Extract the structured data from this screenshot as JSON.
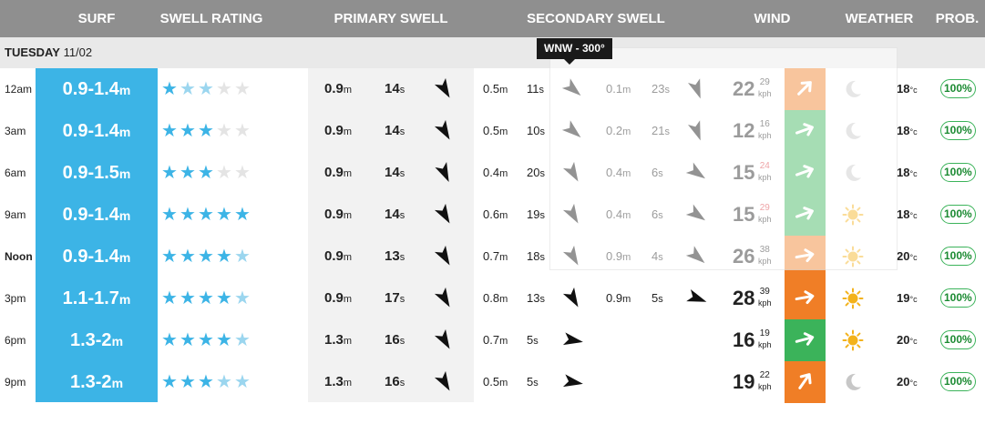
{
  "header": {
    "surf": "SURF",
    "swell_rating": "SWELL RATING",
    "primary_swell": "PRIMARY SWELL",
    "secondary_swell": "SECONDARY SWELL",
    "wind": "WIND",
    "weather": "WEATHER",
    "prob": "PROB."
  },
  "day": {
    "name": "TUESDAY",
    "date": "11/02"
  },
  "tooltip": "WNW - 300°",
  "colors": {
    "surf": "#3cb4e6",
    "wind_orange": "#f07e26",
    "wind_green": "#3bb35a",
    "gust_red": "#d9343a"
  },
  "rows": [
    {
      "time": "12am",
      "surf": "0.9-1.4",
      "stars_full": 1,
      "stars_faint": 2,
      "stars_total": 5,
      "p_ht": "0.9",
      "p_pd": "14",
      "p_dir": 150,
      "s_ht": "0.5",
      "s_pd": "11",
      "s_dir": 130,
      "t_ht": "0.1",
      "t_pd": "23",
      "t_dir": 160,
      "wind": "22",
      "gust": "29",
      "gust_red": false,
      "wind_color": "orange",
      "wind_dir": 225,
      "weather": "moon-icon",
      "temp": "18",
      "prob": "100%"
    },
    {
      "time": "3am",
      "surf": "0.9-1.4",
      "stars_full": 3,
      "stars_faint": 0,
      "stars_total": 5,
      "p_ht": "0.9",
      "p_pd": "14",
      "p_dir": 150,
      "s_ht": "0.5",
      "s_pd": "10",
      "s_dir": 130,
      "t_ht": "0.2",
      "t_pd": "21",
      "t_dir": 160,
      "wind": "12",
      "gust": "16",
      "gust_red": false,
      "wind_color": "green",
      "wind_dir": 250,
      "weather": "moon-icon",
      "temp": "18",
      "prob": "100%"
    },
    {
      "time": "6am",
      "surf": "0.9-1.5",
      "stars_full": 3,
      "stars_faint": 0,
      "stars_total": 5,
      "p_ht": "0.9",
      "p_pd": "14",
      "p_dir": 155,
      "s_ht": "0.4",
      "s_pd": "20",
      "s_dir": 150,
      "t_ht": "0.4",
      "t_pd": "6",
      "t_dir": 125,
      "wind": "15",
      "gust": "24",
      "gust_red": true,
      "wind_color": "green",
      "wind_dir": 250,
      "weather": "moon-icon",
      "temp": "18",
      "prob": "100%"
    },
    {
      "time": "9am",
      "surf": "0.9-1.4",
      "stars_full": 5,
      "stars_faint": 0,
      "stars_total": 5,
      "p_ht": "0.9",
      "p_pd": "14",
      "p_dir": 150,
      "s_ht": "0.6",
      "s_pd": "19",
      "s_dir": 150,
      "t_ht": "0.4",
      "t_pd": "6",
      "t_dir": 125,
      "wind": "15",
      "gust": "29",
      "gust_red": true,
      "wind_color": "green",
      "wind_dir": 250,
      "weather": "sun-icon",
      "temp": "18",
      "prob": "100%"
    },
    {
      "time": "Noon",
      "surf": "0.9-1.4",
      "stars_full": 4,
      "stars_faint": 1,
      "stars_total": 5,
      "p_ht": "0.9",
      "p_pd": "13",
      "p_dir": 150,
      "s_ht": "0.7",
      "s_pd": "18",
      "s_dir": 150,
      "t_ht": "0.9",
      "t_pd": "4",
      "t_dir": 130,
      "wind": "26",
      "gust": "38",
      "gust_red": false,
      "wind_color": "orange",
      "wind_dir": 260,
      "weather": "sun-icon",
      "temp": "20",
      "prob": "100%"
    },
    {
      "time": "3pm",
      "surf": "1.1-1.7",
      "stars_full": 4,
      "stars_faint": 1,
      "stars_total": 5,
      "p_ht": "0.9",
      "p_pd": "17",
      "p_dir": 150,
      "s_ht": "0.8",
      "s_pd": "13",
      "s_dir": 150,
      "t_ht": "0.9",
      "t_pd": "5",
      "t_dir": 110,
      "wind": "28",
      "gust": "39",
      "gust_red": false,
      "wind_color": "orange",
      "wind_dir": 260,
      "weather": "sun-icon",
      "temp": "19",
      "prob": "100%"
    },
    {
      "time": "6pm",
      "surf": "1.3-2",
      "stars_full": 4,
      "stars_faint": 1,
      "stars_total": 5,
      "p_ht": "1.3",
      "p_pd": "16",
      "p_dir": 150,
      "s_ht": "0.7",
      "s_pd": "5",
      "s_dir": 100,
      "t_ht": "",
      "t_pd": "",
      "t_dir": null,
      "wind": "16",
      "gust": "19",
      "gust_red": false,
      "wind_color": "green",
      "wind_dir": 255,
      "weather": "sun-icon",
      "temp": "20",
      "prob": "100%"
    },
    {
      "time": "9pm",
      "surf": "1.3-2",
      "stars_full": 3,
      "stars_faint": 2,
      "stars_total": 5,
      "p_ht": "1.3",
      "p_pd": "16",
      "p_dir": 150,
      "s_ht": "0.5",
      "s_pd": "5",
      "s_dir": 100,
      "t_ht": "",
      "t_pd": "",
      "t_dir": null,
      "wind": "19",
      "gust": "22",
      "gust_red": false,
      "wind_color": "orange",
      "wind_dir": 215,
      "weather": "moon-icon",
      "temp": "20",
      "prob": "100%"
    }
  ],
  "units": {
    "height": "m",
    "period": "s",
    "wind": "kph",
    "temp": "°c"
  }
}
